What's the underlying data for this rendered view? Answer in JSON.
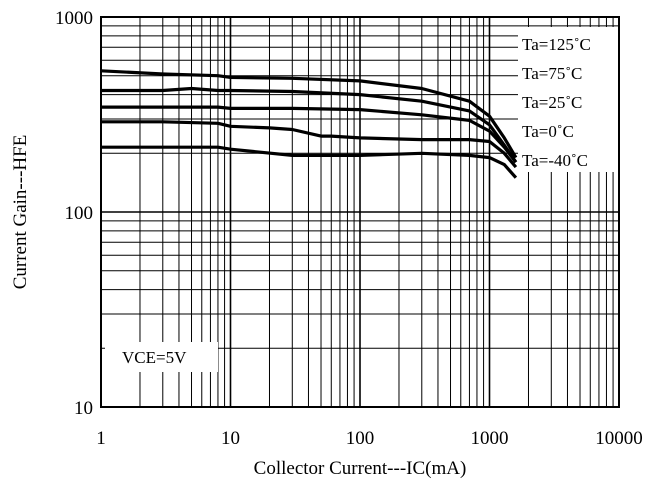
{
  "chart_data": {
    "type": "line",
    "title": "",
    "xlabel": "Collector Current---IC(mA)",
    "ylabel": "Current Gain---HFE",
    "x_scale": "log",
    "y_scale": "log",
    "xlim": [
      1,
      10000
    ],
    "ylim": [
      10,
      1000
    ],
    "x_ticks": [
      "1",
      "10",
      "100",
      "1000",
      "10000"
    ],
    "y_ticks": [
      "10",
      "100",
      "1000"
    ],
    "grid": true,
    "legend_position": "top-right",
    "annotation": "VCE=5V",
    "series": [
      {
        "name": "Ta=125˚C",
        "x": [
          1,
          3,
          8,
          10,
          30,
          100,
          300,
          700,
          1000,
          1300,
          1600
        ],
        "y": [
          530,
          510,
          500,
          490,
          485,
          470,
          430,
          370,
          310,
          240,
          190
        ]
      },
      {
        "name": "Ta=75˚C",
        "x": [
          1,
          3,
          5,
          8,
          10,
          30,
          100,
          300,
          700,
          1000,
          1300,
          1600
        ],
        "y": [
          420,
          420,
          430,
          420,
          420,
          415,
          400,
          370,
          330,
          280,
          220,
          180
        ]
      },
      {
        "name": "Ta=25˚C",
        "x": [
          1,
          3,
          8,
          10,
          30,
          100,
          300,
          700,
          1000,
          1300,
          1600
        ],
        "y": [
          345,
          345,
          345,
          340,
          340,
          335,
          315,
          295,
          260,
          215,
          180
        ]
      },
      {
        "name": "Ta=0˚C",
        "x": [
          1,
          3,
          8,
          10,
          20,
          30,
          50,
          60,
          100,
          300,
          700,
          1000,
          1300,
          1600
        ],
        "y": [
          290,
          290,
          285,
          275,
          270,
          265,
          245,
          245,
          240,
          235,
          235,
          230,
          200,
          170
        ]
      },
      {
        "name": "Ta=-40˚C",
        "x": [
          1,
          3,
          8,
          10,
          30,
          100,
          300,
          700,
          1000,
          1300,
          1600
        ],
        "y": [
          215,
          215,
          215,
          210,
          195,
          195,
          200,
          195,
          190,
          175,
          150
        ]
      }
    ]
  }
}
